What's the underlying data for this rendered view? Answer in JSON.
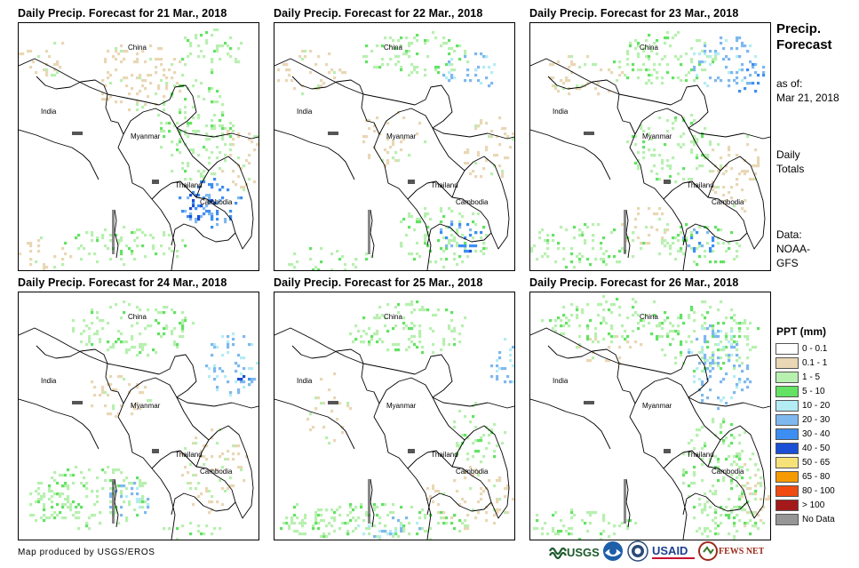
{
  "panels": [
    {
      "title": "Daily Precip. Forecast for 21 Mar., 2018"
    },
    {
      "title": "Daily Precip. Forecast for 22 Mar., 2018"
    },
    {
      "title": "Daily Precip. Forecast for 23 Mar., 2018"
    },
    {
      "title": "Daily Precip. Forecast for 24 Mar., 2018"
    },
    {
      "title": "Daily Precip. Forecast for 25 Mar., 2018"
    },
    {
      "title": "Daily Precip. Forecast for 26 Mar., 2018"
    }
  ],
  "map_labels": {
    "china": "China",
    "india": "India",
    "myanmar": "Myanmar",
    "thailand": "Thailand",
    "cambodia": "Cambodia"
  },
  "sidebar": {
    "title_line1": "Precip.",
    "title_line2": "Forecast",
    "asof_line1": "as of:",
    "asof_line2": "Mar 21, 2018",
    "totals_line1": "Daily",
    "totals_line2": "Totals",
    "data_line1": "Data:",
    "data_line2": "NOAA-",
    "data_line3": "GFS"
  },
  "legend": {
    "title": "PPT (mm)",
    "items": [
      {
        "label": "0 - 0.1",
        "color": "#ffffff"
      },
      {
        "label": "0.1 - 1",
        "color": "#e9d7b5"
      },
      {
        "label": "1 - 5",
        "color": "#b8f0b0"
      },
      {
        "label": "5 - 10",
        "color": "#63e263"
      },
      {
        "label": "10 - 20",
        "color": "#b3ecf5"
      },
      {
        "label": "20 - 30",
        "color": "#7fb8ee"
      },
      {
        "label": "30 - 40",
        "color": "#3d8ef2"
      },
      {
        "label": "40 - 50",
        "color": "#1a4fd6"
      },
      {
        "label": "50 - 65",
        "color": "#f7e27a"
      },
      {
        "label": "65 - 80",
        "color": "#f59a00"
      },
      {
        "label": "80 - 100",
        "color": "#f04b10"
      },
      {
        "label": "> 100",
        "color": "#a41a1a"
      },
      {
        "label": "No Data",
        "color": "#969696"
      }
    ]
  },
  "credit": "Map produced by USGS/EROS",
  "logos": {
    "usgs": "USGS",
    "noaa": "NOAA",
    "usaid": "USAID",
    "fewsnet": "FEWS NET"
  }
}
